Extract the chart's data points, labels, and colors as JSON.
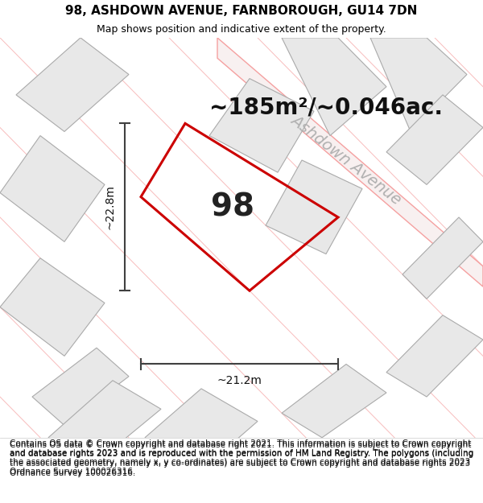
{
  "title": "98, ASHDOWN AVENUE, FARNBOROUGH, GU14 7DN",
  "subtitle": "Map shows position and indicative extent of the property.",
  "area_label": "~185m²/~0.046ac.",
  "plot_number": "98",
  "width_label": "~21.2m",
  "height_label": "~22.8m",
  "street_label": "Ashdown Avenue",
  "footer": "Contains OS data © Crown copyright and database right 2021. This information is subject to Crown copyright and database rights 2023 and is reproduced with the permission of HM Land Registry. The polygons (including the associated geometry, namely x, y co-ordinates) are subject to Crown copyright and database rights 2023 Ordnance Survey 100026316.",
  "bg_color": "#f0f0f0",
  "map_bg": "#f0f0f0",
  "title_fontsize": 11,
  "subtitle_fontsize": 9,
  "footer_fontsize": 7.5,
  "area_fontsize": 20,
  "plot_num_fontsize": 28,
  "street_label_color": "#b0b0b0",
  "street_label_fontsize": 14,
  "red_polygon_color": "#cc0000",
  "neighbor_fill": "#e8e8e8",
  "neighbor_edge": "#aaaaaa",
  "road_line_color": "#f5a0a0",
  "dim_line_color": "#404040"
}
